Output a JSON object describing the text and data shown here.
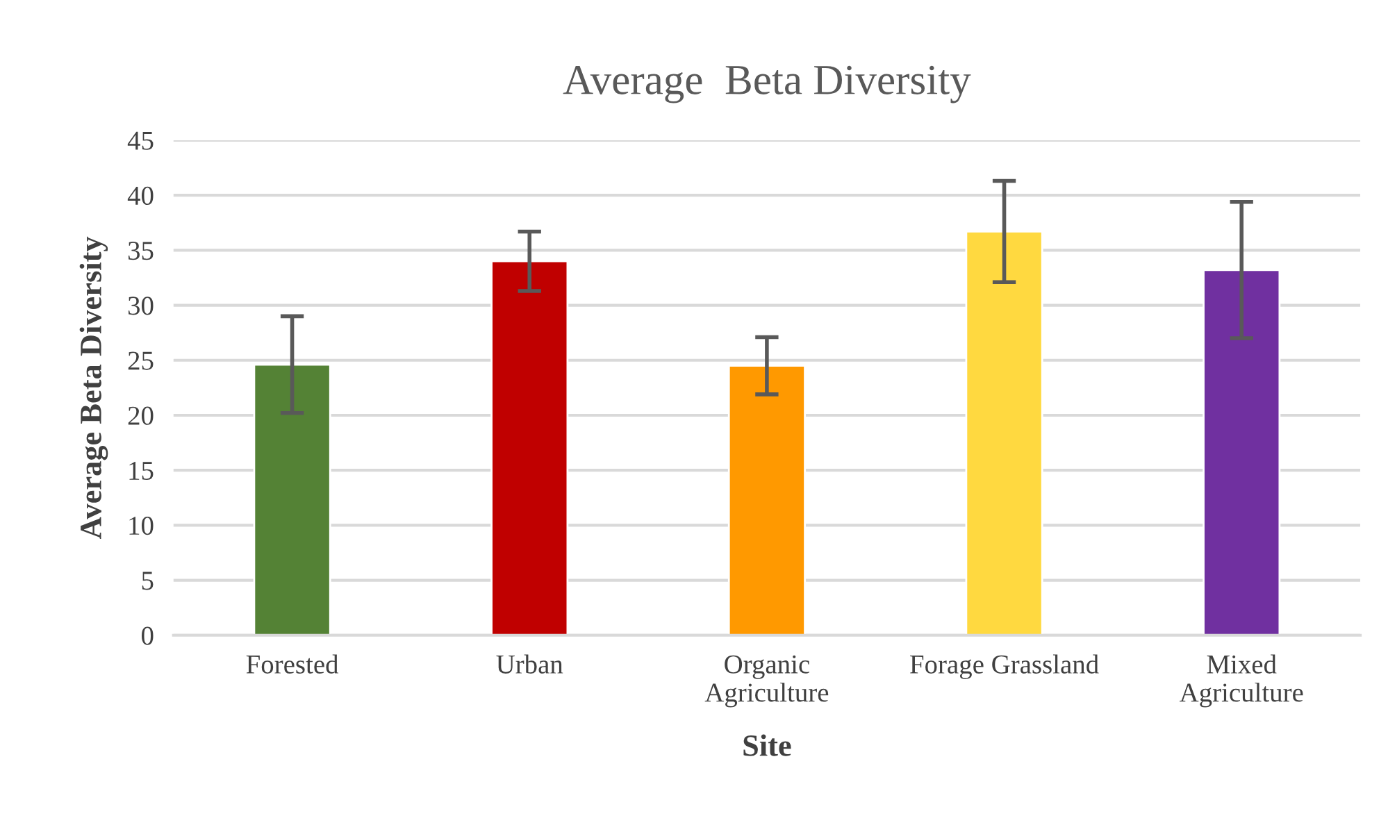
{
  "chart_data": {
    "type": "bar",
    "title": "Average  Beta Diversity",
    "xlabel": "Site",
    "ylabel": "Average Beta Diversity",
    "categories": [
      "Forested",
      "Urban",
      "Organic\nAgriculture",
      "Forage Grassland",
      "Mixed\nAgriculture"
    ],
    "values": [
      24.6,
      34.0,
      24.5,
      36.7,
      33.2
    ],
    "errors": [
      4.4,
      2.7,
      2.6,
      4.6,
      6.2
    ],
    "colors": [
      "#548235",
      "#c00000",
      "#ff9900",
      "#ffd940",
      "#7030a0"
    ],
    "ylim": [
      0,
      45
    ],
    "yticks": [
      0,
      5,
      10,
      15,
      20,
      25,
      30,
      35,
      40,
      45
    ],
    "grid": "y"
  }
}
